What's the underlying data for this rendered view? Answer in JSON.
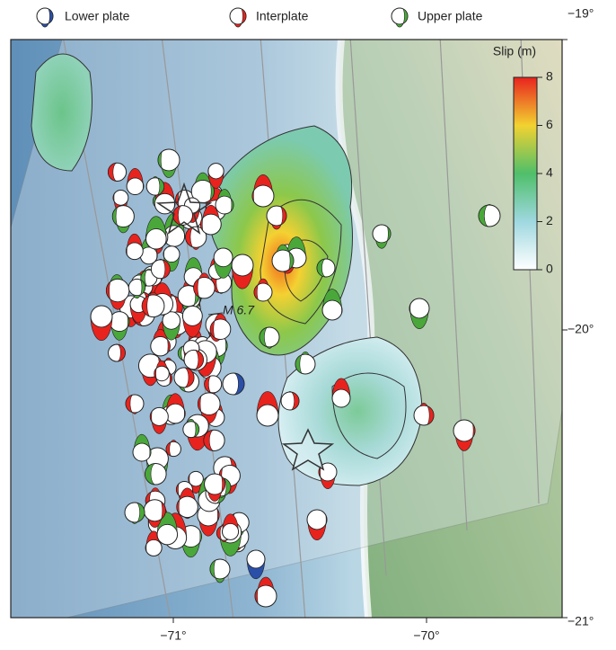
{
  "legend": [
    "Lower plate",
    "Interplate",
    "Upper plate"
  ],
  "colorbar": {
    "title": "Slip (m)",
    "ticks": [
      0,
      2,
      4,
      6,
      8
    ]
  },
  "lat_labels": [
    "−19°",
    "−20°",
    "−21°"
  ],
  "lon_labels": [
    "−71°",
    "−70°"
  ],
  "annotation": "M 6.7"
}
